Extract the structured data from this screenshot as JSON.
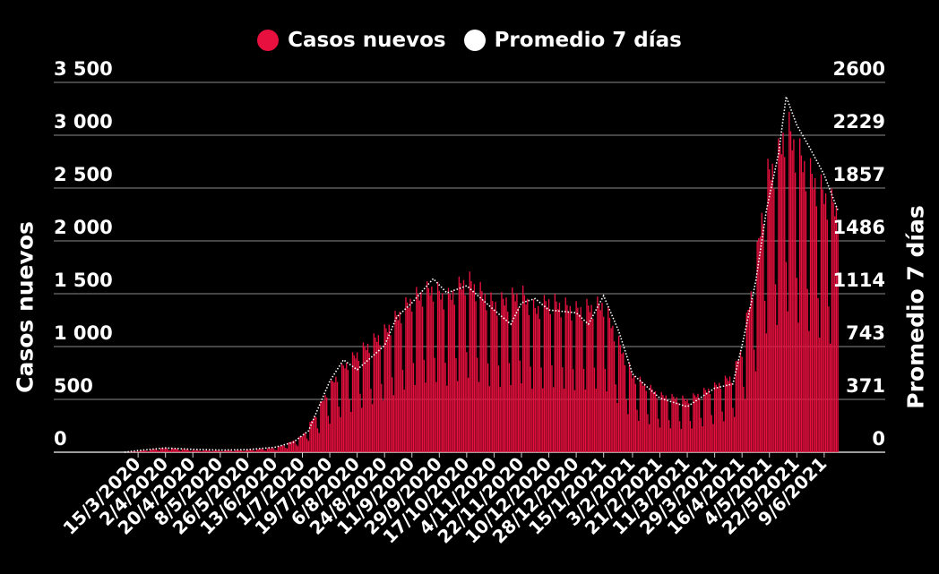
{
  "chart_data": {
    "type": "bar",
    "title": "",
    "legend": {
      "placement": "top-center",
      "items": [
        {
          "label": "Casos nuevos",
          "color": "#e8103e"
        },
        {
          "label": "Promedio 7 días",
          "color": "#ffffff"
        }
      ]
    },
    "ylabel_left": "Casos nuevos",
    "ylabel_right": "Promedio 7 días",
    "ylim_left": [
      0,
      3500
    ],
    "ylim_right": [
      0,
      2600
    ],
    "yticks_left": [
      "0",
      "500",
      "1 000",
      "1 500",
      "2 000",
      "2 500",
      "3 000",
      "3 500"
    ],
    "yticks_right": [
      "0",
      "371",
      "743",
      "1114",
      "1486",
      "1857",
      "2229",
      "2600"
    ],
    "grid": true,
    "x_start": "2020-03-06",
    "x_end": "2021-06-18",
    "xtick_labels": [
      "15/3/2020",
      "2/4/2020",
      "20/4/2020",
      "8/5/2020",
      "26/5/2020",
      "13/6/2020",
      "1/7/2020",
      "19/7/2020",
      "6/8/2020",
      "24/8/2020",
      "11/9/2020",
      "29/9/2020",
      "17/10/2020",
      "4/11/2020",
      "22/11/2020",
      "10/12/2020",
      "28/12/2020",
      "15/1/2021",
      "3/2/2021",
      "21/2/2021",
      "11/3/2021",
      "29/3/2021",
      "16/4/2021",
      "4/5/2021",
      "22/5/2021",
      "9/6/2021"
    ],
    "series": [
      {
        "name": "Casos nuevos",
        "type": "bar",
        "axis": "left",
        "color": "#e8103e",
        "keypoints": [
          [
            "2020-03-06",
            0
          ],
          [
            "2020-03-15",
            10
          ],
          [
            "2020-04-02",
            40
          ],
          [
            "2020-04-20",
            20
          ],
          [
            "2020-05-08",
            15
          ],
          [
            "2020-05-26",
            20
          ],
          [
            "2020-06-13",
            40
          ],
          [
            "2020-06-20",
            70
          ],
          [
            "2020-07-01",
            150
          ],
          [
            "2020-07-10",
            350
          ],
          [
            "2020-07-19",
            600
          ],
          [
            "2020-07-28",
            780
          ],
          [
            "2020-08-06",
            900
          ],
          [
            "2020-08-24",
            1100
          ],
          [
            "2020-09-11",
            1400
          ],
          [
            "2020-09-25",
            1500
          ],
          [
            "2020-10-04",
            1400
          ],
          [
            "2020-10-17",
            1580
          ],
          [
            "2020-11-04",
            1350
          ],
          [
            "2020-11-22",
            1450
          ],
          [
            "2020-12-01",
            1300
          ],
          [
            "2020-12-10",
            1380
          ],
          [
            "2020-12-28",
            1300
          ],
          [
            "2021-01-15",
            1350
          ],
          [
            "2021-01-25",
            1000
          ],
          [
            "2021-02-03",
            700
          ],
          [
            "2021-02-21",
            520
          ],
          [
            "2021-03-11",
            480
          ],
          [
            "2021-03-29",
            600
          ],
          [
            "2021-04-10",
            700
          ],
          [
            "2021-04-16",
            950
          ],
          [
            "2021-04-25",
            1700
          ],
          [
            "2021-05-02",
            2500
          ],
          [
            "2021-05-10",
            2700
          ],
          [
            "2021-05-15",
            3000
          ],
          [
            "2021-05-22",
            2750
          ],
          [
            "2021-05-30",
            2550
          ],
          [
            "2021-06-09",
            2350
          ],
          [
            "2021-06-18",
            2200
          ]
        ]
      },
      {
        "name": "Promedio 7 días",
        "type": "line",
        "axis": "right",
        "color": "#ffffff",
        "keypoints": [
          [
            "2020-03-06",
            0
          ],
          [
            "2020-03-15",
            12
          ],
          [
            "2020-04-02",
            30
          ],
          [
            "2020-04-20",
            20
          ],
          [
            "2020-05-08",
            15
          ],
          [
            "2020-05-26",
            18
          ],
          [
            "2020-06-13",
            35
          ],
          [
            "2020-06-25",
            70
          ],
          [
            "2020-07-05",
            150
          ],
          [
            "2020-07-19",
            500
          ],
          [
            "2020-07-28",
            650
          ],
          [
            "2020-08-06",
            580
          ],
          [
            "2020-08-24",
            750
          ],
          [
            "2020-09-01",
            950
          ],
          [
            "2020-09-11",
            1050
          ],
          [
            "2020-09-25",
            1220
          ],
          [
            "2020-10-04",
            1120
          ],
          [
            "2020-10-17",
            1170
          ],
          [
            "2020-11-04",
            1000
          ],
          [
            "2020-11-15",
            900
          ],
          [
            "2020-11-22",
            1050
          ],
          [
            "2020-12-01",
            1080
          ],
          [
            "2020-12-10",
            1000
          ],
          [
            "2020-12-28",
            980
          ],
          [
            "2021-01-05",
            900
          ],
          [
            "2021-01-15",
            1100
          ],
          [
            "2021-01-25",
            850
          ],
          [
            "2021-02-03",
            550
          ],
          [
            "2021-02-21",
            380
          ],
          [
            "2021-03-11",
            320
          ],
          [
            "2021-03-29",
            450
          ],
          [
            "2021-04-10",
            480
          ],
          [
            "2021-04-16",
            750
          ],
          [
            "2021-04-25",
            1200
          ],
          [
            "2021-05-02",
            1700
          ],
          [
            "2021-05-10",
            2100
          ],
          [
            "2021-05-15",
            2500
          ],
          [
            "2021-05-22",
            2300
          ],
          [
            "2021-05-30",
            2150
          ],
          [
            "2021-06-09",
            1950
          ],
          [
            "2021-06-18",
            1700
          ]
        ]
      }
    ]
  }
}
